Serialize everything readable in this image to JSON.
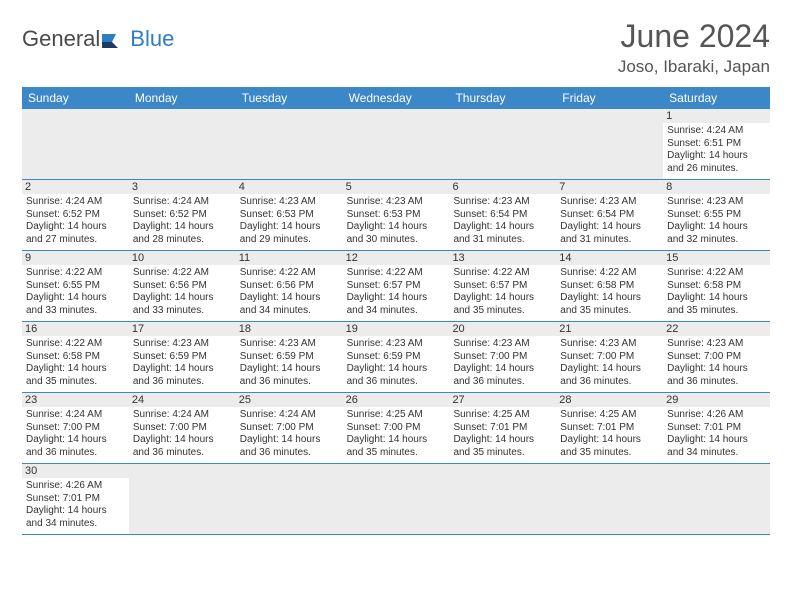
{
  "brand": {
    "part1": "General",
    "part2": "Blue"
  },
  "title": "June 2024",
  "location": "Joso, Ibaraki, Japan",
  "colors": {
    "header_bg": "#3b87c8",
    "header_text": "#ffffff",
    "row_border": "#3b87c8",
    "daynum_bg": "#ececec",
    "text": "#333333",
    "brand_gray": "#4a4a4a",
    "brand_blue": "#2e7cc4"
  },
  "weekdays": [
    "Sunday",
    "Monday",
    "Tuesday",
    "Wednesday",
    "Thursday",
    "Friday",
    "Saturday"
  ],
  "labels": {
    "sunrise": "Sunrise:",
    "sunset": "Sunset:",
    "daylight": "Daylight:"
  },
  "startOffset": 6,
  "days": [
    {
      "n": 1,
      "sunrise": "4:24 AM",
      "sunset": "6:51 PM",
      "daylight": "14 hours and 26 minutes."
    },
    {
      "n": 2,
      "sunrise": "4:24 AM",
      "sunset": "6:52 PM",
      "daylight": "14 hours and 27 minutes."
    },
    {
      "n": 3,
      "sunrise": "4:24 AM",
      "sunset": "6:52 PM",
      "daylight": "14 hours and 28 minutes."
    },
    {
      "n": 4,
      "sunrise": "4:23 AM",
      "sunset": "6:53 PM",
      "daylight": "14 hours and 29 minutes."
    },
    {
      "n": 5,
      "sunrise": "4:23 AM",
      "sunset": "6:53 PM",
      "daylight": "14 hours and 30 minutes."
    },
    {
      "n": 6,
      "sunrise": "4:23 AM",
      "sunset": "6:54 PM",
      "daylight": "14 hours and 31 minutes."
    },
    {
      "n": 7,
      "sunrise": "4:23 AM",
      "sunset": "6:54 PM",
      "daylight": "14 hours and 31 minutes."
    },
    {
      "n": 8,
      "sunrise": "4:23 AM",
      "sunset": "6:55 PM",
      "daylight": "14 hours and 32 minutes."
    },
    {
      "n": 9,
      "sunrise": "4:22 AM",
      "sunset": "6:55 PM",
      "daylight": "14 hours and 33 minutes."
    },
    {
      "n": 10,
      "sunrise": "4:22 AM",
      "sunset": "6:56 PM",
      "daylight": "14 hours and 33 minutes."
    },
    {
      "n": 11,
      "sunrise": "4:22 AM",
      "sunset": "6:56 PM",
      "daylight": "14 hours and 34 minutes."
    },
    {
      "n": 12,
      "sunrise": "4:22 AM",
      "sunset": "6:57 PM",
      "daylight": "14 hours and 34 minutes."
    },
    {
      "n": 13,
      "sunrise": "4:22 AM",
      "sunset": "6:57 PM",
      "daylight": "14 hours and 35 minutes."
    },
    {
      "n": 14,
      "sunrise": "4:22 AM",
      "sunset": "6:58 PM",
      "daylight": "14 hours and 35 minutes."
    },
    {
      "n": 15,
      "sunrise": "4:22 AM",
      "sunset": "6:58 PM",
      "daylight": "14 hours and 35 minutes."
    },
    {
      "n": 16,
      "sunrise": "4:22 AM",
      "sunset": "6:58 PM",
      "daylight": "14 hours and 35 minutes."
    },
    {
      "n": 17,
      "sunrise": "4:23 AM",
      "sunset": "6:59 PM",
      "daylight": "14 hours and 36 minutes."
    },
    {
      "n": 18,
      "sunrise": "4:23 AM",
      "sunset": "6:59 PM",
      "daylight": "14 hours and 36 minutes."
    },
    {
      "n": 19,
      "sunrise": "4:23 AM",
      "sunset": "6:59 PM",
      "daylight": "14 hours and 36 minutes."
    },
    {
      "n": 20,
      "sunrise": "4:23 AM",
      "sunset": "7:00 PM",
      "daylight": "14 hours and 36 minutes."
    },
    {
      "n": 21,
      "sunrise": "4:23 AM",
      "sunset": "7:00 PM",
      "daylight": "14 hours and 36 minutes."
    },
    {
      "n": 22,
      "sunrise": "4:23 AM",
      "sunset": "7:00 PM",
      "daylight": "14 hours and 36 minutes."
    },
    {
      "n": 23,
      "sunrise": "4:24 AM",
      "sunset": "7:00 PM",
      "daylight": "14 hours and 36 minutes."
    },
    {
      "n": 24,
      "sunrise": "4:24 AM",
      "sunset": "7:00 PM",
      "daylight": "14 hours and 36 minutes."
    },
    {
      "n": 25,
      "sunrise": "4:24 AM",
      "sunset": "7:00 PM",
      "daylight": "14 hours and 36 minutes."
    },
    {
      "n": 26,
      "sunrise": "4:25 AM",
      "sunset": "7:00 PM",
      "daylight": "14 hours and 35 minutes."
    },
    {
      "n": 27,
      "sunrise": "4:25 AM",
      "sunset": "7:01 PM",
      "daylight": "14 hours and 35 minutes."
    },
    {
      "n": 28,
      "sunrise": "4:25 AM",
      "sunset": "7:01 PM",
      "daylight": "14 hours and 35 minutes."
    },
    {
      "n": 29,
      "sunrise": "4:26 AM",
      "sunset": "7:01 PM",
      "daylight": "14 hours and 34 minutes."
    },
    {
      "n": 30,
      "sunrise": "4:26 AM",
      "sunset": "7:01 PM",
      "daylight": "14 hours and 34 minutes."
    }
  ]
}
